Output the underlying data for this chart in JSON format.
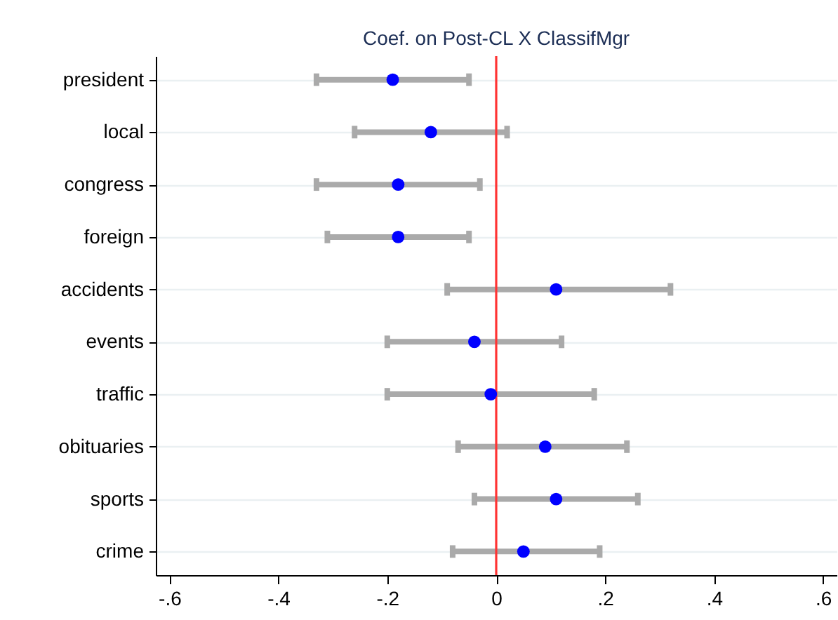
{
  "chart_data": {
    "type": "scatter",
    "orientation": "horizontal",
    "title": "Coef. on Post-CL X ClassifMgr",
    "categories": [
      "president",
      "local",
      "congress",
      "foreign",
      "accidents",
      "events",
      "traffic",
      "obituaries",
      "sports",
      "crime"
    ],
    "series": [
      {
        "color": "#0000ff",
        "values": [
          -0.19,
          -0.12,
          -0.18,
          -0.18,
          0.11,
          -0.04,
          -0.01,
          0.09,
          0.11,
          0.05
        ],
        "errors": [
          [
            -0.33,
            -0.05
          ],
          [
            -0.26,
            0.02
          ],
          [
            -0.33,
            -0.03
          ],
          [
            -0.31,
            -0.05
          ],
          [
            -0.09,
            0.32
          ],
          [
            -0.2,
            0.12
          ],
          [
            -0.2,
            0.18
          ],
          [
            -0.07,
            0.24
          ],
          [
            -0.04,
            0.26
          ],
          [
            -0.08,
            0.19
          ]
        ]
      }
    ],
    "marker": "circle",
    "xlim": [
      -0.625,
      0.625
    ],
    "xticks": [
      {
        "value": -0.6,
        "label": "-.6"
      },
      {
        "value": -0.4,
        "label": "-.4"
      },
      {
        "value": -0.2,
        "label": "-.2"
      },
      0,
      {
        "value": 0.2,
        "label": ".2"
      },
      {
        "value": 0.4,
        "label": ".4"
      },
      {
        "value": 0.6,
        "label": ".6"
      }
    ],
    "ref_lines": [
      {
        "axis": "x",
        "value": 0,
        "color": "#ff3333"
      }
    ],
    "grid": "y"
  }
}
